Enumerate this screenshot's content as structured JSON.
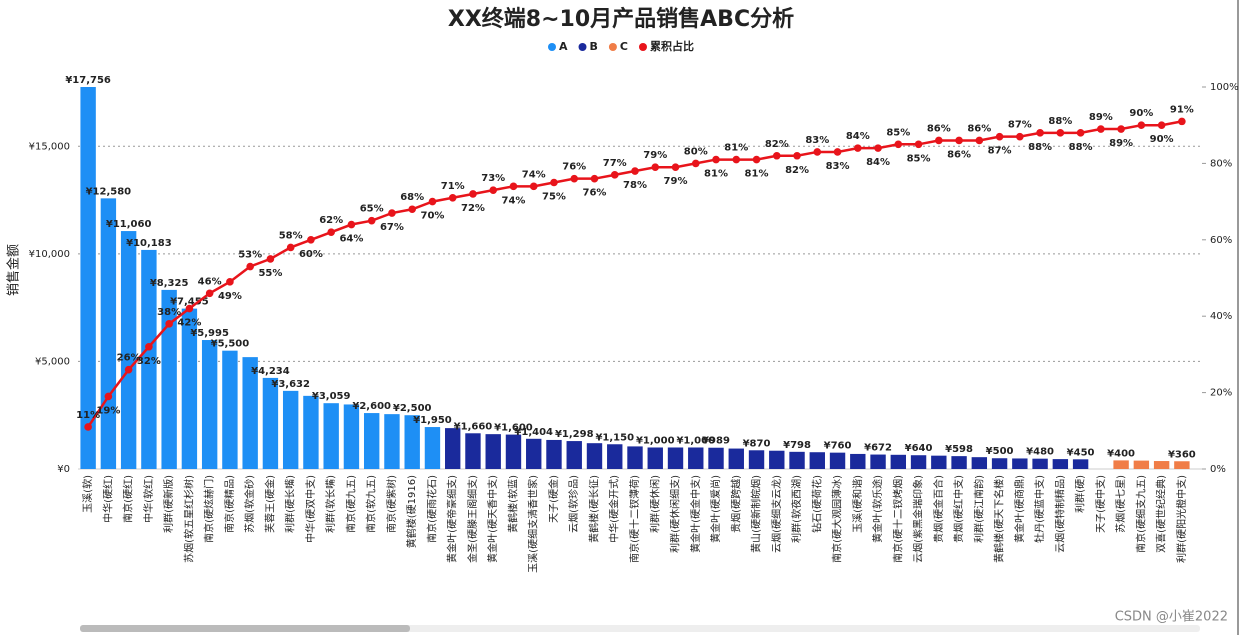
{
  "chart_data": {
    "type": "bar",
    "title": "XX终端8~10月产品销售ABC分析",
    "y_label": "销售金额",
    "watermark": "CSDN @小崔2022",
    "categories": [
      "玉溪(软)",
      "中华(硬红)",
      "南京(硬红)",
      "中华(软红)",
      "利群(硬新版)",
      "苏烟(软五星红杉树)",
      "南京(硬炫赫门)",
      "南京(硬精品)",
      "苏烟(软金砂)",
      "芙蓉王(硬金)",
      "利群(硬长嘴)",
      "中华(硬双中支)",
      "利群(软长嘴)",
      "南京(硬九五)",
      "南京(软九五)",
      "南京(硬紫树)",
      "黄鹤楼(硬1916)",
      "南京(硬雨花石)",
      "黄金叶(硬帝豪细支)",
      "金圣(硬滕王阁细支)",
      "黄金叶(硬天香中支)",
      "黄鹤楼(软蓝)",
      "玉溪(硬细支清香世家)",
      "天子(硬金)",
      "云烟(软珍品)",
      "黄鹤楼(硬长征)",
      "中华(硬金开式)",
      "南京(硬十二钗薄荷)",
      "利群(硬休闲)",
      "利群(硬休闲细支)",
      "黄金叶(硬金中支)",
      "黄金叶(硬爱尚)",
      "贵烟(硬跨越)",
      "黄山(硬新制皖烟)",
      "云烟(硬细支云龙)",
      "利群(软夜西湖)",
      "钻石(硬荷花)",
      "南京(硬大观园薄冰)",
      "玉溪(硬和谐)",
      "黄金叶(软乐途)",
      "南京(硬十二钗烤烟)",
      "云烟(紫黑金瑞印象)",
      "贵烟(硬金百合)",
      "贵烟(硬红中支)",
      "利群(硬江南韵)",
      "黄鹤楼(硬天下名楼)",
      "黄金叶(硬商鼎)",
      "牡丹(硬蓝中支)",
      "云烟(硬特制精品)",
      "利群(硬)",
      "天子(硬中支)",
      "苏烟(硬七星)",
      "南京(硬细支九五)",
      "双喜(硬世纪经典)",
      "利群(硬阳光橙中支)"
    ],
    "series": [
      {
        "name": "A",
        "color": "#1e8ff5",
        "values": [
          17756,
          12580,
          11060,
          10183,
          8325,
          7455,
          5995,
          5500,
          5200,
          4234,
          3632,
          3400,
          3059,
          3000,
          2600,
          2550,
          2500,
          1950,
          null,
          null,
          null,
          null,
          null,
          null,
          null,
          null,
          null,
          null,
          null,
          null,
          null,
          null,
          null,
          null,
          null,
          null,
          null,
          null,
          null,
          null,
          null,
          null,
          null,
          null,
          null,
          null,
          null,
          null,
          null,
          null,
          null,
          null,
          null,
          null,
          null
        ],
        "value_labels": [
          "¥17,756",
          "¥12,580",
          "¥11,060",
          "¥10,183",
          "¥8,325",
          "¥7,455",
          "¥5,995",
          "¥5,500",
          null,
          "¥4,234",
          "¥3,632",
          null,
          "¥3,059",
          null,
          "¥2,600",
          null,
          "¥2,500",
          "¥1,950",
          null,
          null,
          null,
          null,
          null,
          null,
          null,
          null,
          null,
          null,
          null,
          null,
          null,
          null,
          null,
          null,
          null,
          null,
          null,
          null,
          null,
          null,
          null,
          null,
          null,
          null,
          null,
          null,
          null,
          null,
          null,
          null,
          null,
          null,
          null,
          null,
          null
        ]
      },
      {
        "name": "B",
        "color": "#1a2a9c",
        "values": [
          null,
          null,
          null,
          null,
          null,
          null,
          null,
          null,
          null,
          null,
          null,
          null,
          null,
          null,
          null,
          null,
          null,
          null,
          1900,
          1660,
          1620,
          1600,
          1404,
          1350,
          1298,
          1200,
          1150,
          1050,
          1000,
          1000,
          1000,
          989,
          950,
          870,
          850,
          798,
          780,
          760,
          700,
          672,
          660,
          640,
          620,
          598,
          550,
          500,
          490,
          480,
          460,
          450,
          null,
          null,
          null,
          null,
          null
        ],
        "value_labels": [
          null,
          null,
          null,
          null,
          null,
          null,
          null,
          null,
          null,
          null,
          null,
          null,
          null,
          null,
          null,
          null,
          null,
          null,
          null,
          "¥1,660",
          null,
          "¥1,600",
          "¥1,404",
          null,
          "¥1,298",
          null,
          "¥1,150",
          null,
          "¥1,000",
          null,
          "¥1,000",
          "¥989",
          null,
          "¥870",
          null,
          "¥798",
          null,
          "¥760",
          null,
          "¥672",
          null,
          "¥640",
          null,
          "¥598",
          null,
          "¥500",
          null,
          "¥480",
          null,
          "¥450",
          null,
          null,
          null,
          null,
          null
        ]
      },
      {
        "name": "C",
        "color": "#f07d47",
        "values": [
          null,
          null,
          null,
          null,
          null,
          null,
          null,
          null,
          null,
          null,
          null,
          null,
          null,
          null,
          null,
          null,
          null,
          null,
          null,
          null,
          null,
          null,
          null,
          null,
          null,
          null,
          null,
          null,
          null,
          null,
          null,
          null,
          null,
          null,
          null,
          null,
          null,
          null,
          null,
          null,
          null,
          null,
          null,
          null,
          null,
          null,
          null,
          null,
          null,
          null,
          null,
          400,
          390,
          370,
          360
        ],
        "value_labels": [
          null,
          null,
          null,
          null,
          null,
          null,
          null,
          null,
          null,
          null,
          null,
          null,
          null,
          null,
          null,
          null,
          null,
          null,
          null,
          null,
          null,
          null,
          null,
          null,
          null,
          null,
          null,
          null,
          null,
          null,
          null,
          null,
          null,
          null,
          null,
          null,
          null,
          null,
          null,
          null,
          null,
          null,
          null,
          null,
          null,
          null,
          null,
          null,
          null,
          null,
          null,
          "¥400",
          null,
          null,
          "¥360"
        ]
      },
      {
        "name": "累积占比",
        "color": "#e8141b",
        "type": "line",
        "axis": "y2",
        "values": [
          11,
          19,
          26,
          32,
          38,
          42,
          46,
          49,
          53,
          55,
          58,
          60,
          62,
          64,
          65,
          67,
          68,
          70,
          71,
          72,
          73,
          74,
          74,
          75,
          76,
          76,
          77,
          78,
          79,
          79,
          80,
          81,
          81,
          81,
          82,
          82,
          83,
          83,
          84,
          84,
          85,
          85,
          86,
          86,
          86,
          87,
          87,
          88,
          88,
          88,
          89,
          89,
          90,
          90,
          91
        ],
        "value_labels": [
          "11%",
          "19%",
          "26%",
          "32%",
          "38%",
          "42%",
          "46%",
          "49%",
          "53%",
          "55%",
          "58%",
          "60%",
          "62%",
          "64%",
          "65%",
          "67%",
          "68%",
          "70%",
          "71%",
          "72%",
          "73%",
          "74%",
          "74%",
          "75%",
          "76%",
          "76%",
          "77%",
          "78%",
          "79%",
          "79%",
          "80%",
          "81%",
          "81%",
          "81%",
          "82%",
          "82%",
          "83%",
          "83%",
          "84%",
          "84%",
          "85%",
          "85%",
          "86%",
          "86%",
          "86%",
          "87%",
          "87%",
          "88%",
          "88%",
          "88%",
          "89%",
          "89%",
          "90%",
          "90%",
          "91%"
        ]
      }
    ],
    "ylim": [
      0,
      17756
    ],
    "yticks": [
      {
        "value": 0,
        "label": "¥0"
      },
      {
        "value": 5000,
        "label": "¥5,000"
      },
      {
        "value": 10000,
        "label": "¥10,000"
      },
      {
        "value": 15000,
        "label": "¥15,000"
      }
    ],
    "y2lim": [
      0,
      100
    ],
    "y2ticks": [
      {
        "value": 0,
        "label": "0%"
      },
      {
        "value": 20,
        "label": "20%"
      },
      {
        "value": 40,
        "label": "40%"
      },
      {
        "value": 60,
        "label": "60%"
      },
      {
        "value": 80,
        "label": "80%"
      },
      {
        "value": 100,
        "label": "100%"
      }
    ],
    "grid": true,
    "legend": "top"
  }
}
